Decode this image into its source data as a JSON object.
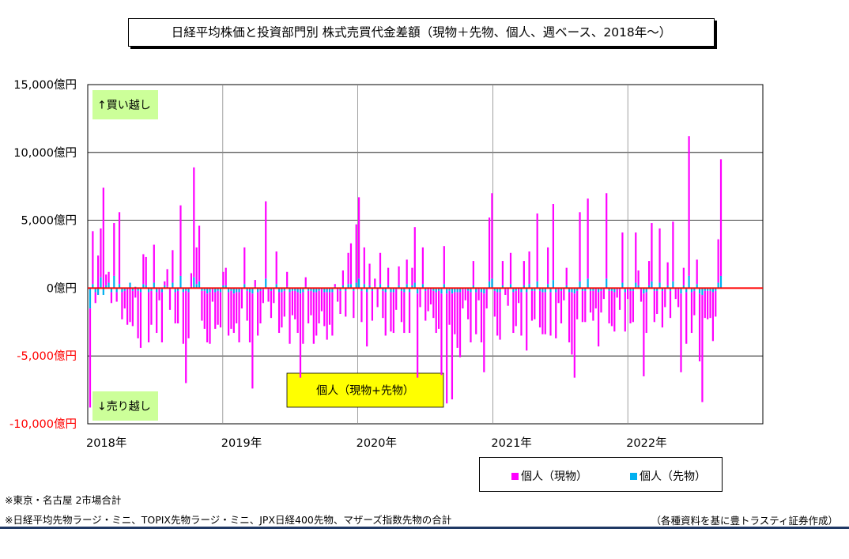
{
  "title": "日経平均株価と投資部門別 株式売買代金差額（現物＋先物、個人、週ベース、2018年～）",
  "notes": {
    "line1": "※東京・名古屋 2市場合計",
    "line2": "※日経平均先物ラージ・ミニ、TOPIX先物ラージ・ミニ、JPX日経400先物、マザーズ指数先物の合計",
    "source": "（各種資料を基に豊トラスティ証券作成）"
  },
  "colors": {
    "cash": "#ff00ff",
    "futures": "#00b0f0",
    "zero_line": "#ff0000",
    "annotation_green": "#ccff99",
    "annotation_yellow": "#ffff00",
    "negative_tick": "#ff0000",
    "grid": "#000000"
  },
  "chart_data": {
    "type": "bar",
    "stacked": true,
    "title": "",
    "xlabel": "",
    "ylabel": "",
    "ylim": [
      -10000,
      15000
    ],
    "y_ticks": [
      {
        "value": 15000,
        "label": "15,000億円"
      },
      {
        "value": 10000,
        "label": "10,000億円"
      },
      {
        "value": 5000,
        "label": "5,000億円"
      },
      {
        "value": 0,
        "label": "0億円"
      },
      {
        "value": -5000,
        "label": "-5,000億円"
      },
      {
        "value": -10000,
        "label": "-10,000億円"
      }
    ],
    "x_ticks": [
      "2018年",
      "2019年",
      "2020年",
      "2021年",
      "2022年"
    ],
    "x_range_years": [
      2018,
      2023
    ],
    "grid": true,
    "legend_position": "bottom-right",
    "annotations": [
      {
        "text": "↑買い越し",
        "style": "green",
        "where": "top-left"
      },
      {
        "text": "↓売り越し",
        "style": "green",
        "where": "bottom-left"
      },
      {
        "text": "個人（現物+先物）",
        "style": "yellow",
        "where": "bottom-center"
      }
    ],
    "series": [
      {
        "name": "個人（現物）",
        "values": [
          -7300,
          3900,
          -800,
          2400,
          3600,
          7400,
          800,
          800,
          -800,
          3900,
          -700,
          5300,
          -2000,
          -1300,
          -2600,
          -2500,
          -2600,
          -700,
          -3500,
          -4100,
          2200,
          2100,
          -3700,
          -2500,
          2800,
          -3000,
          -800,
          -3700,
          300,
          1300,
          -1500,
          2400,
          -2300,
          -2400,
          5200,
          -3800,
          -6800,
          -3400,
          1000,
          8100,
          2700,
          4100,
          -2200,
          -2800,
          -3600,
          -3800,
          -900,
          -2700,
          -2500,
          -2600,
          1000,
          1300,
          -3200,
          -2800,
          -2900,
          -2300,
          -3700,
          -1400,
          2700,
          -2200,
          -3700,
          -7000,
          500,
          -3200,
          -2400,
          -1000,
          5700,
          -900,
          -2000,
          -1000,
          2400,
          -3000,
          -2600,
          -1900,
          1100,
          -3800,
          -1800,
          -2100,
          -3000,
          -6200,
          -3800,
          700,
          -2400,
          -1800,
          -3800,
          -3200,
          -2400,
          -1600,
          -2500,
          -3500,
          -2400,
          -3200,
          200,
          -900,
          -1700,
          1100,
          -1900,
          2300,
          3000,
          -2000,
          4300,
          6000,
          -2300,
          2700,
          -4000,
          1600,
          -2200,
          600,
          -1300,
          2300,
          -2000,
          -3200,
          1300,
          -2900,
          -3000,
          -1500,
          1400,
          -2300,
          -3000,
          1800,
          -3000,
          1300,
          4100,
          -6200,
          -1300,
          2700,
          -2200,
          -1600,
          -1100,
          -2000,
          -3000,
          -2800,
          -6000,
          2800,
          -8100,
          -2500,
          -7800,
          -3100,
          -4100,
          -4800,
          -1400,
          -800,
          -2100,
          -3700,
          1800,
          -3100,
          -800,
          -3700,
          -5800,
          -1400,
          4700,
          6300,
          -1900,
          -3200,
          -3500,
          1800,
          -400,
          -1200,
          2300,
          -3000,
          -2600,
          -1000,
          -3200,
          1800,
          -4300,
          2400,
          -2200,
          -2100,
          5000,
          -2700,
          -3100,
          -3100,
          2700,
          -3200,
          5600,
          -3400,
          -1000,
          -2400,
          -800,
          1300,
          -3700,
          -4600,
          -6200,
          -2100,
          5100,
          -2300,
          -2300,
          5900,
          -1600,
          -2200,
          -1400,
          -4000,
          -1600,
          -700,
          6300,
          -2400,
          -2600,
          -2900,
          -600,
          -1500,
          3700,
          -2900,
          -700,
          -2400,
          -2300,
          3700,
          1100,
          -900,
          -6100,
          -3000,
          1800,
          4300,
          -2300,
          -1700,
          4000,
          -2700,
          -1300,
          1700,
          -2000,
          4400,
          -700,
          -1300,
          -5800,
          1300,
          -3800,
          10300,
          -3000,
          -1800,
          1800,
          -5000,
          -7900,
          -2000,
          -2100,
          -2000,
          -3600,
          -1900,
          3200,
          8600
        ],
        "color": "#ff00ff"
      },
      {
        "name": "個人（先物）",
        "values": [
          -1500,
          300,
          -300,
          -500,
          800,
          -500,
          200,
          400,
          -300,
          900,
          -300,
          300,
          -300,
          -200,
          -100,
          400,
          -200,
          100,
          -200,
          -300,
          300,
          200,
          -300,
          -200,
          400,
          -300,
          -100,
          -300,
          200,
          100,
          -100,
          400,
          -300,
          -200,
          900,
          -300,
          -200,
          -300,
          100,
          800,
          300,
          500,
          -200,
          -200,
          -400,
          -300,
          -100,
          -300,
          -200,
          -300,
          200,
          200,
          -300,
          -200,
          -400,
          -300,
          -300,
          -100,
          300,
          -200,
          -300,
          -400,
          100,
          -300,
          -200,
          -100,
          700,
          -100,
          -200,
          -100,
          300,
          -300,
          -300,
          -200,
          100,
          -300,
          -200,
          -200,
          -300,
          -400,
          -300,
          100,
          -200,
          -200,
          -300,
          -300,
          -200,
          -100,
          -300,
          -300,
          -300,
          -300,
          100,
          -100,
          -200,
          200,
          -200,
          300,
          300,
          -200,
          400,
          700,
          -200,
          300,
          -300,
          200,
          -200,
          100,
          -100,
          300,
          -200,
          -300,
          200,
          -300,
          -300,
          -100,
          200,
          -200,
          -300,
          300,
          -300,
          200,
          400,
          -400,
          -100,
          300,
          -200,
          -100,
          -100,
          -200,
          -300,
          -200,
          -400,
          300,
          -400,
          -200,
          -400,
          -300,
          -300,
          -300,
          -100,
          -100,
          -200,
          -300,
          200,
          -300,
          -100,
          -300,
          -400,
          -100,
          500,
          700,
          -200,
          -300,
          -300,
          200,
          -100,
          -100,
          300,
          -300,
          -200,
          -100,
          -300,
          200,
          -300,
          300,
          -200,
          -200,
          500,
          -200,
          -300,
          -300,
          300,
          -300,
          600,
          -300,
          -100,
          -200,
          -100,
          200,
          -300,
          -300,
          -400,
          -200,
          500,
          -200,
          -200,
          700,
          -200,
          -200,
          -100,
          -300,
          -200,
          -100,
          700,
          -200,
          -200,
          -300,
          -100,
          -100,
          400,
          -300,
          -100,
          -200,
          -200,
          400,
          200,
          -100,
          -400,
          -300,
          200,
          500,
          -200,
          -200,
          400,
          -200,
          -100,
          200,
          -200,
          500,
          -100,
          -100,
          -400,
          200,
          -300,
          900,
          -300,
          -200,
          300,
          -400,
          -500,
          -200,
          -200,
          -200,
          -300,
          -200,
          400,
          900
        ],
        "color": "#00b0f0"
      }
    ]
  }
}
